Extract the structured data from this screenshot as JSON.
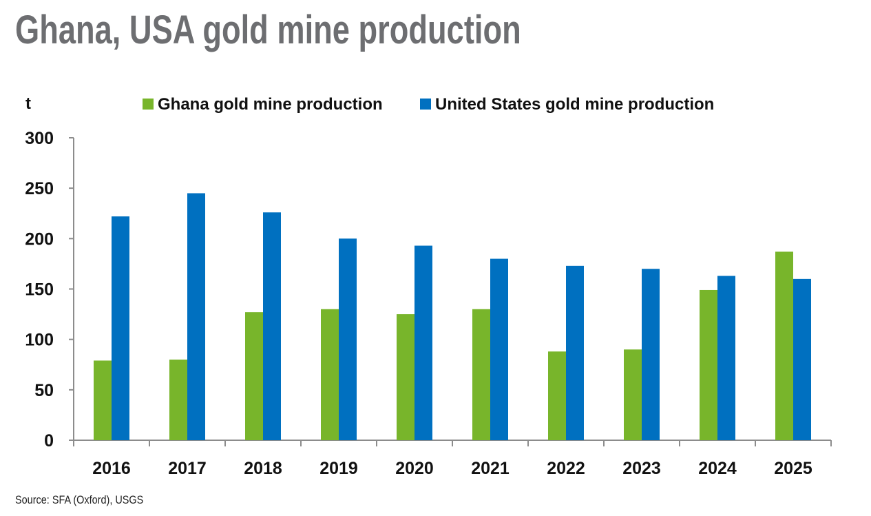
{
  "title": "Ghana, USA gold mine production",
  "source": "Source: SFA (Oxford), USGS",
  "chart_data": {
    "type": "bar",
    "title": "Ghana, USA gold mine production",
    "ylabel": "t",
    "xlabel": "",
    "ylim": [
      0,
      300
    ],
    "yticks": [
      0,
      50,
      100,
      150,
      200,
      250,
      300
    ],
    "grid": false,
    "legend_position": "top",
    "categories": [
      "2016",
      "2017",
      "2018",
      "2019",
      "2020",
      "2021",
      "2022",
      "2023",
      "2024",
      "2025"
    ],
    "series": [
      {
        "name": "Ghana gold mine production",
        "color": "#78b52b",
        "values": [
          79,
          80,
          127,
          130,
          125,
          130,
          88,
          90,
          149,
          187
        ]
      },
      {
        "name": "United States gold mine production",
        "color": "#0070c0",
        "values": [
          222,
          245,
          226,
          200,
          193,
          180,
          173,
          170,
          163,
          160
        ]
      }
    ]
  }
}
